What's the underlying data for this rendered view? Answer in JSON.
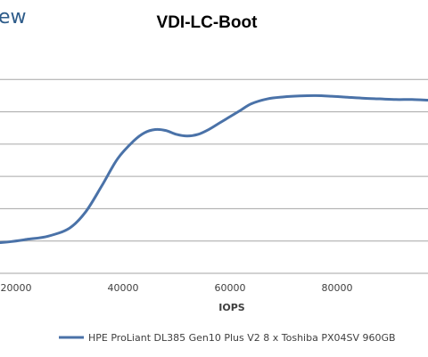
{
  "brand_fragment": "ew",
  "chart_data": {
    "type": "line",
    "title": "VDI-LC-Boot",
    "xlabel": "IOPS",
    "ylabel": "",
    "x_ticks": [
      20000,
      40000,
      60000,
      80000
    ],
    "x_tick_labels": [
      "20000",
      "40000",
      "60000",
      "80000"
    ],
    "xlim": [
      17000,
      97000
    ],
    "ylim": [
      0,
      7
    ],
    "y_gridlines": [
      1,
      2,
      3,
      4,
      5,
      6
    ],
    "grid": true,
    "legend_position": "bottom",
    "series": [
      {
        "name": "HPE ProLiant DL385 Gen10 Plus V2 8 x Toshiba PX04SV 960GB",
        "color": "#4a72a8",
        "x": [
          17000,
          19000,
          22000,
          26000,
          30000,
          33000,
          36000,
          39000,
          42000,
          44000,
          46000,
          48000,
          50000,
          52000,
          54000,
          56000,
          58000,
          60000,
          62000,
          64000,
          67000,
          70000,
          73000,
          76000,
          79000,
          82000,
          85000,
          88000,
          91000,
          94000,
          97000
        ],
        "y": [
          0.95,
          0.98,
          1.05,
          1.15,
          1.4,
          1.9,
          2.7,
          3.55,
          4.1,
          4.35,
          4.45,
          4.42,
          4.3,
          4.25,
          4.3,
          4.45,
          4.65,
          4.85,
          5.05,
          5.25,
          5.4,
          5.46,
          5.49,
          5.5,
          5.48,
          5.45,
          5.42,
          5.4,
          5.38,
          5.38,
          5.36
        ]
      }
    ]
  }
}
